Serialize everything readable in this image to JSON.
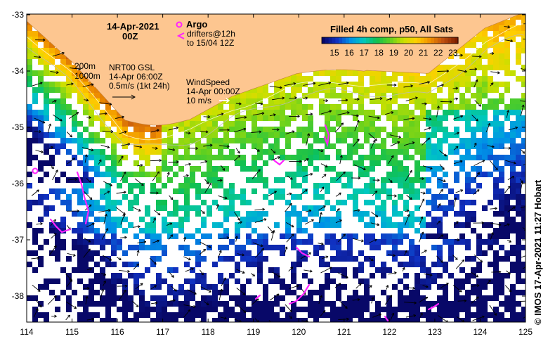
{
  "map": {
    "title_date": "14-Apr-2021",
    "title_time": "00Z",
    "lon_ticks": [
      "114",
      "115",
      "116",
      "117",
      "118",
      "119",
      "120",
      "121",
      "122",
      "123",
      "124",
      "125"
    ],
    "lat_ticks": [
      "-33",
      "-34",
      "-35",
      "-36",
      "-37",
      "-38"
    ],
    "argo_label": "Argo",
    "drifters_line1": "drifters@12h",
    "drifters_line2": "to 15/04 12Z",
    "isobath_200": "200m",
    "isobath_1000": "1000m",
    "gsl_line1": "NRT00 GSL",
    "gsl_line2": "14-Apr 06:00Z",
    "gsl_line3": "0.5m/s (1kt 24h)",
    "wind_line1": "WindSpeed",
    "wind_line2": "14-Apr 00:00Z",
    "wind_line3": "10 m/s",
    "colorbar_title": "Filled 4h comp, p50, All Sats",
    "colorbar_ticks": [
      "15",
      "16",
      "17",
      "18",
      "19",
      "20",
      "21",
      "22",
      "23"
    ],
    "credit": "© IMOS 17-Apr-2021 11:27 Hobart"
  },
  "colors": {
    "land": "#fdc690",
    "argo_drifter": "#ff22ff",
    "ramp": [
      "#080868",
      "#1030c0",
      "#0090e8",
      "#00c8c0",
      "#10c050",
      "#60d020",
      "#c8e000",
      "#ffd000",
      "#f09000",
      "#c05010",
      "#802000"
    ]
  }
}
